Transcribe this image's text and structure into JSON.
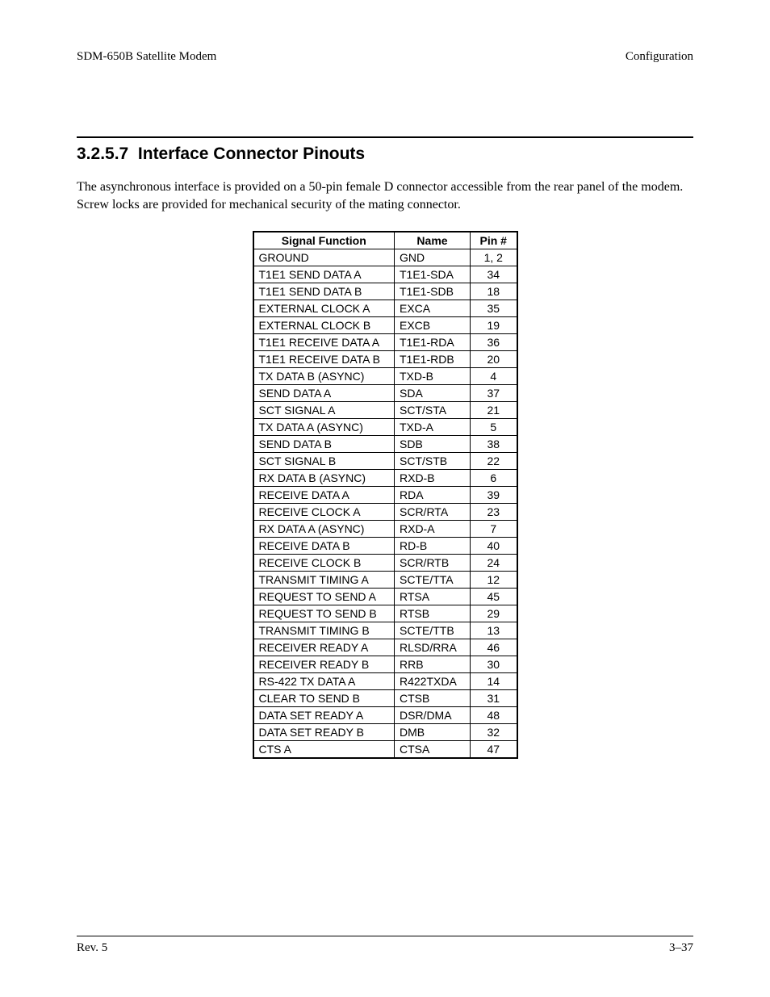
{
  "header": {
    "left": "SDM-650B Satellite Modem",
    "right": "Configuration"
  },
  "section": {
    "number": "3.2.5.7",
    "title": "Interface Connector Pinouts",
    "paragraph": "The asynchronous interface is provided on a 50-pin female D connector accessible from the rear panel of the modem. Screw locks are provided for mechanical security of the mating connector."
  },
  "table": {
    "headers": {
      "func": "Signal Function",
      "name": "Name",
      "pin": "Pin #"
    },
    "rows": [
      {
        "func": "GROUND",
        "name": "GND",
        "pin": "1, 2"
      },
      {
        "func": "T1E1 SEND DATA A",
        "name": "T1E1-SDA",
        "pin": "34"
      },
      {
        "func": "T1E1 SEND DATA B",
        "name": "T1E1-SDB",
        "pin": "18"
      },
      {
        "func": "EXTERNAL CLOCK A",
        "name": "EXCA",
        "pin": "35"
      },
      {
        "func": "EXTERNAL CLOCK B",
        "name": "EXCB",
        "pin": "19"
      },
      {
        "func": "T1E1 RECEIVE DATA A",
        "name": "T1E1-RDA",
        "pin": "36"
      },
      {
        "func": "T1E1 RECEIVE DATA B",
        "name": "T1E1-RDB",
        "pin": "20"
      },
      {
        "func": "TX DATA B (ASYNC)",
        "name": "TXD-B",
        "pin": "4"
      },
      {
        "func": "SEND DATA A",
        "name": "SDA",
        "pin": "37"
      },
      {
        "func": "SCT SIGNAL A",
        "name": "SCT/STA",
        "pin": "21"
      },
      {
        "func": "TX DATA A (ASYNC)",
        "name": "TXD-A",
        "pin": "5"
      },
      {
        "func": "SEND DATA B",
        "name": "SDB",
        "pin": "38"
      },
      {
        "func": "SCT SIGNAL B",
        "name": "SCT/STB",
        "pin": "22"
      },
      {
        "func": "RX DATA B (ASYNC)",
        "name": "RXD-B",
        "pin": "6"
      },
      {
        "func": "RECEIVE DATA A",
        "name": "RDA",
        "pin": "39"
      },
      {
        "func": "RECEIVE CLOCK A",
        "name": "SCR/RTA",
        "pin": "23"
      },
      {
        "func": "RX DATA A (ASYNC)",
        "name": "RXD-A",
        "pin": "7"
      },
      {
        "func": "RECEIVE DATA B",
        "name": "RD-B",
        "pin": "40"
      },
      {
        "func": "RECEIVE CLOCK B",
        "name": "SCR/RTB",
        "pin": "24"
      },
      {
        "func": "TRANSMIT TIMING A",
        "name": "SCTE/TTA",
        "pin": "12"
      },
      {
        "func": "REQUEST TO SEND A",
        "name": "RTSA",
        "pin": "45"
      },
      {
        "func": "REQUEST TO SEND B",
        "name": "RTSB",
        "pin": "29"
      },
      {
        "func": "TRANSMIT TIMING B",
        "name": "SCTE/TTB",
        "pin": "13"
      },
      {
        "func": "RECEIVER READY A",
        "name": "RLSD/RRA",
        "pin": "46"
      },
      {
        "func": "RECEIVER READY B",
        "name": "RRB",
        "pin": "30"
      },
      {
        "func": "RS-422 TX DATA A",
        "name": "R422TXDA",
        "pin": "14"
      },
      {
        "func": "CLEAR TO SEND B",
        "name": "CTSB",
        "pin": "31"
      },
      {
        "func": "DATA SET READY A",
        "name": "DSR/DMA",
        "pin": "48"
      },
      {
        "func": "DATA SET READY B",
        "name": "DMB",
        "pin": "32"
      },
      {
        "func": "CTS A",
        "name": "CTSA",
        "pin": "47"
      }
    ]
  },
  "footer": {
    "left": "Rev. 5",
    "right": "3–37"
  }
}
